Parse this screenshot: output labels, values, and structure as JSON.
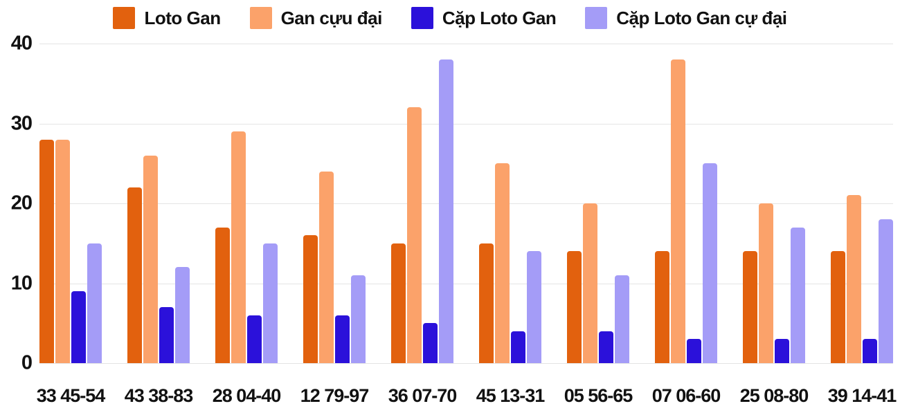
{
  "colors": {
    "loto_gan": "#e2610e",
    "gan_cuu_dai": "#fba26a",
    "cap_loto_gan": "#2b11da",
    "cap_loto_gan_cu_dai": "#a49cf7",
    "gridline": "#e4e4e4",
    "text": "#111111",
    "background": "#ffffff"
  },
  "legend": {
    "position": "top",
    "items": [
      {
        "label": "Loto Gan",
        "color": "#e2610e"
      },
      {
        "label": "Gan cựu đại",
        "color": "#fba26a"
      },
      {
        "label": "Cặp Loto Gan",
        "color": "#2b11da"
      },
      {
        "label": "Cặp Loto Gan cự đại",
        "color": "#a49cf7"
      }
    ]
  },
  "y_axis": {
    "ticks": [
      40,
      30,
      20,
      10,
      0
    ],
    "min": 0,
    "max": 40
  },
  "chart_data": {
    "type": "bar",
    "title": "",
    "xlabel": "",
    "ylabel": "",
    "ylim": [
      0,
      40
    ],
    "grid": true,
    "legend_position": "top",
    "categories": [
      "33 45-54",
      "43 38-83",
      "28 04-40",
      "12 79-97",
      "36 07-70",
      "45 13-31",
      "05 56-65",
      "07 06-60",
      "25 08-80",
      "39 14-41"
    ],
    "series": [
      {
        "name": "Loto Gan",
        "color": "#e2610e",
        "values": [
          28,
          22,
          17,
          16,
          15,
          15,
          14,
          14,
          14,
          14
        ]
      },
      {
        "name": "Gan cựu đại",
        "color": "#fba26a",
        "values": [
          28,
          26,
          29,
          24,
          32,
          25,
          20,
          38,
          20,
          21
        ]
      },
      {
        "name": "Cặp Loto Gan",
        "color": "#2b11da",
        "values": [
          9,
          7,
          6,
          6,
          5,
          4,
          4,
          3,
          3,
          3
        ]
      },
      {
        "name": "Cặp Loto Gan cự đại",
        "color": "#a49cf7",
        "values": [
          15,
          12,
          15,
          11,
          38,
          14,
          11,
          25,
          17,
          18
        ]
      }
    ]
  }
}
